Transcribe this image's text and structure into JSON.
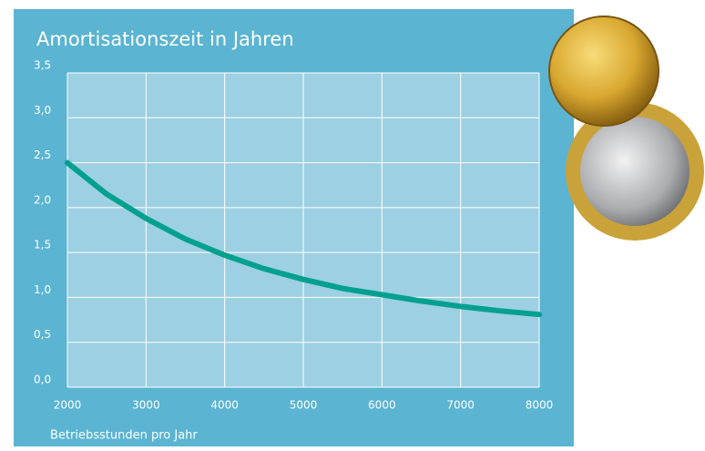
{
  "chart_data": {
    "type": "line",
    "title": "Amortisationszeit in Jahren",
    "x_label": "Betriebsstunden pro Jahr",
    "x": [
      2000,
      2500,
      3000,
      3500,
      4000,
      4500,
      5000,
      5500,
      6000,
      6500,
      7000,
      7500,
      8000
    ],
    "values": [
      2.5,
      2.15,
      1.88,
      1.65,
      1.47,
      1.32,
      1.2,
      1.1,
      1.03,
      0.96,
      0.9,
      0.85,
      0.81
    ],
    "color": "#00a08f",
    "xlim": [
      2000,
      8000
    ],
    "xticks": [
      2000,
      3000,
      4000,
      5000,
      6000,
      7000,
      8000
    ],
    "ylim": [
      0,
      3.5
    ],
    "yticks": [
      {
        "value": 0,
        "label": "0,0"
      },
      {
        "value": 0.5,
        "label": "0,5"
      },
      {
        "value": 1,
        "label": "1,0"
      },
      {
        "value": 1.5,
        "label": "1,5"
      },
      {
        "value": 2,
        "label": "2,0"
      },
      {
        "value": 2.5,
        "label": "2,5"
      },
      {
        "value": 3,
        "label": "3,0"
      },
      {
        "value": 3.5,
        "label": "3,5"
      }
    ],
    "grid": true
  }
}
